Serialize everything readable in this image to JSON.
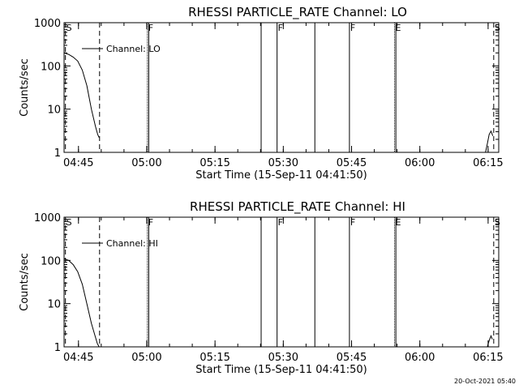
{
  "footer": {
    "timestamp": "20-Oct-2021 05:40"
  },
  "chart_data": [
    {
      "type": "line",
      "title": "RHESSI PARTICLE_RATE Channel: LO",
      "xlabel": "Start Time (15-Sep-11 04:41:50)",
      "ylabel": "Counts/sec",
      "yscale": "log",
      "xlim_minutes_after_start": [
        0,
        95.5
      ],
      "ylim": [
        1,
        1000
      ],
      "x_ticks": [
        "04:45",
        "05:00",
        "05:15",
        "05:30",
        "05:45",
        "06:00",
        "06:15"
      ],
      "y_ticks": [
        "1",
        "10",
        "100",
        "1000"
      ],
      "legend": {
        "position": "top-left",
        "entries": [
          "Channel: LO"
        ]
      },
      "grid": false,
      "series": [
        {
          "name": "Channel: LO",
          "segments": [
            {
              "x_minutes": [
                0,
                1,
                2,
                3,
                4,
                5,
                6,
                6.9,
                7.4,
                7.7
              ],
              "y": [
                200,
                185,
                160,
                130,
                80,
                35,
                10,
                4,
                2.6,
                2.2
              ]
            },
            {
              "x_minutes": [
                92.6,
                93.0,
                93.4,
                93.8,
                94.2
              ],
              "y": [
                1,
                1.6,
                2.6,
                3.1,
                2.4
              ]
            }
          ]
        }
      ],
      "vlines": [
        {
          "x_minutes": 0.3,
          "style": "dashed",
          "label": "S"
        },
        {
          "x_minutes": 7.8,
          "style": "dashed",
          "label": ""
        },
        {
          "x_minutes": 18.3,
          "style": "dotted",
          "label": "F"
        },
        {
          "x_minutes": 18.6,
          "style": "solid",
          "label": ""
        },
        {
          "x_minutes": 43.3,
          "style": "solid",
          "label": ""
        },
        {
          "x_minutes": 46.8,
          "style": "solid",
          "label": "F"
        },
        {
          "x_minutes": 55.1,
          "style": "solid",
          "label": ""
        },
        {
          "x_minutes": 62.7,
          "style": "solid",
          "label": "F"
        },
        {
          "x_minutes": 72.6,
          "style": "dotted",
          "label": "E"
        },
        {
          "x_minutes": 72.9,
          "style": "solid",
          "label": ""
        },
        {
          "x_minutes": 94.4,
          "style": "dashed",
          "label": "S"
        }
      ]
    },
    {
      "type": "line",
      "title": "RHESSI PARTICLE_RATE Channel: HI",
      "xlabel": "Start Time (15-Sep-11 04:41:50)",
      "ylabel": "Counts/sec",
      "yscale": "log",
      "xlim_minutes_after_start": [
        0,
        95.5
      ],
      "ylim": [
        1,
        1000
      ],
      "x_ticks": [
        "04:45",
        "05:00",
        "05:15",
        "05:30",
        "05:45",
        "06:00",
        "06:15"
      ],
      "y_ticks": [
        "1",
        "10",
        "100",
        "1000"
      ],
      "legend": {
        "position": "top-left",
        "entries": [
          "Channel: HI"
        ]
      },
      "grid": false,
      "series": [
        {
          "name": "Channel: HI",
          "segments": [
            {
              "x_minutes": [
                0,
                1,
                2,
                3,
                4,
                5,
                6,
                6.8,
                7.3,
                7.7
              ],
              "y": [
                110,
                100,
                80,
                55,
                28,
                10,
                3.5,
                1.8,
                1.2,
                1.0
              ]
            },
            {
              "x_minutes": [
                93.0,
                93.4,
                93.8,
                94.1
              ],
              "y": [
                1,
                1.4,
                1.8,
                1.5
              ]
            }
          ]
        }
      ],
      "vlines": [
        {
          "x_minutes": 0.3,
          "style": "dashed",
          "label": "S"
        },
        {
          "x_minutes": 7.8,
          "style": "dashed",
          "label": ""
        },
        {
          "x_minutes": 18.3,
          "style": "dotted",
          "label": "F"
        },
        {
          "x_minutes": 18.6,
          "style": "solid",
          "label": ""
        },
        {
          "x_minutes": 43.3,
          "style": "solid",
          "label": ""
        },
        {
          "x_minutes": 46.8,
          "style": "solid",
          "label": "F"
        },
        {
          "x_minutes": 55.1,
          "style": "solid",
          "label": ""
        },
        {
          "x_minutes": 62.7,
          "style": "solid",
          "label": "F"
        },
        {
          "x_minutes": 72.6,
          "style": "dotted",
          "label": "E"
        },
        {
          "x_minutes": 72.9,
          "style": "solid",
          "label": ""
        },
        {
          "x_minutes": 94.4,
          "style": "dashed",
          "label": "S"
        }
      ]
    }
  ]
}
